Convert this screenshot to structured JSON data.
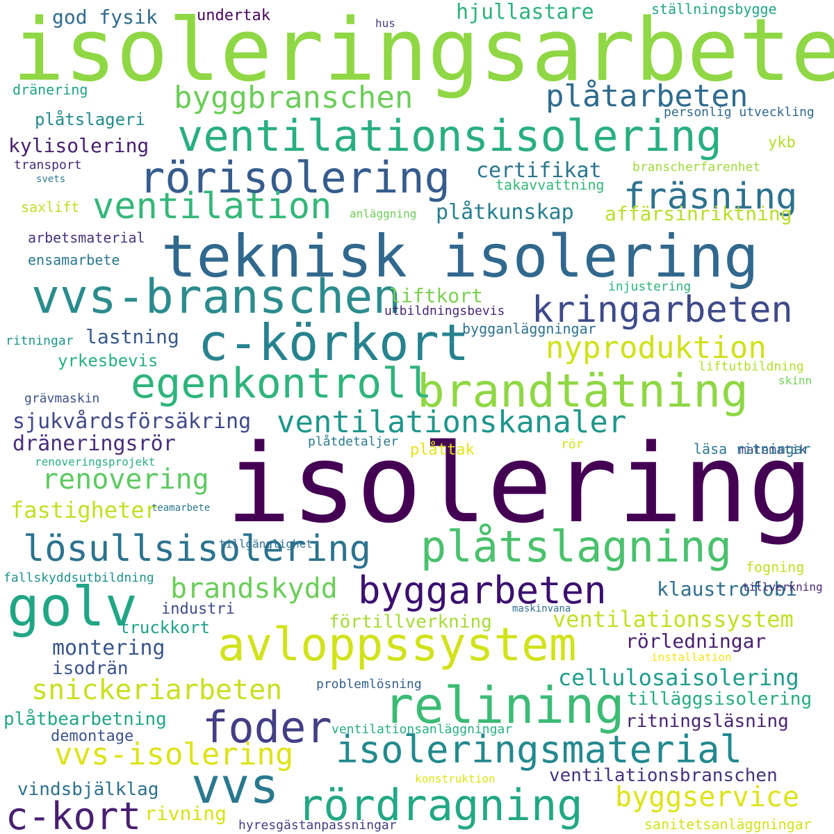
{
  "words": [
    {
      "text": "isoleringsarbete",
      "color": "#8fd744"
    },
    {
      "text": "isolering",
      "color": "#440154"
    },
    {
      "text": "teknisk isolering",
      "color": "#31688e"
    },
    {
      "text": "ventilationsisolering",
      "color": "#29af7f"
    },
    {
      "text": "vvs-branschen",
      "color": "#2c8c8d"
    },
    {
      "text": "rörisolering",
      "color": "#365c8d"
    },
    {
      "text": "c-körkort",
      "color": "#26828e"
    },
    {
      "text": "brandtätning",
      "color": "#8fd744"
    },
    {
      "text": "egenkontroll",
      "color": "#2fb47c"
    },
    {
      "text": "kringarbeten",
      "color": "#3e4a89"
    },
    {
      "text": "ventilation",
      "color": "#35b779"
    },
    {
      "text": "fräsning",
      "color": "#2c728e"
    },
    {
      "text": "byggbranschen",
      "color": "#6ccd5a"
    },
    {
      "text": "plåtarbeten",
      "color": "#2f6b8e"
    },
    {
      "text": "nyproduktion",
      "color": "#d0e11c"
    },
    {
      "text": "ventilationskanaler",
      "color": "#1f968b"
    },
    {
      "text": "avloppssystem",
      "color": "#d2e21b"
    },
    {
      "text": "golv",
      "color": "#21a685"
    },
    {
      "text": "relining",
      "color": "#3cbb75"
    },
    {
      "text": "plåtslagning",
      "color": "#4ac16d"
    },
    {
      "text": "lösullsisolering",
      "color": "#2c738e"
    },
    {
      "text": "byggarbeten",
      "color": "#3b0f70"
    },
    {
      "text": "foder",
      "color": "#433e85"
    },
    {
      "text": "vvs",
      "color": "#2a788e"
    },
    {
      "text": "rördragning",
      "color": "#22a884"
    },
    {
      "text": "isoleringsmaterial",
      "color": "#23898e"
    },
    {
      "text": "c-kort",
      "color": "#481f70"
    },
    {
      "text": "vvs-isolering",
      "color": "#dde318"
    },
    {
      "text": "snickeriarbeten",
      "color": "#c8e020"
    },
    {
      "text": "byggservice",
      "color": "#dde318"
    },
    {
      "text": "renovering",
      "color": "#5ec962"
    },
    {
      "text": "brandskydd",
      "color": "#6ccd5a"
    },
    {
      "text": "cellulosaisolering",
      "color": "#1e9c89"
    },
    {
      "text": "ventilationssystem",
      "color": "#c2df23"
    },
    {
      "text": "sjukvårdsförsäkring",
      "color": "#3f4889"
    },
    {
      "text": "dräneringsrör",
      "color": "#472d7b"
    },
    {
      "text": "fastigheter",
      "color": "#c2df23"
    },
    {
      "text": "hjullastare",
      "color": "#2db27d"
    },
    {
      "text": "certifikat",
      "color": "#2b758e"
    },
    {
      "text": "plåtkunskap",
      "color": "#277f8e"
    },
    {
      "text": "affärsinriktning",
      "color": "#b8de29"
    },
    {
      "text": "liftkort",
      "color": "#7ad151"
    },
    {
      "text": "lastning",
      "color": "#38588c"
    },
    {
      "text": "yrkesbevis",
      "color": "#29af7f"
    },
    {
      "text": "klaustrofobi",
      "color": "#2e6f8e"
    },
    {
      "text": "förtillverkning",
      "color": "#a5db36"
    },
    {
      "text": "montering",
      "color": "#39568c"
    },
    {
      "text": "isodrän",
      "color": "#3b528b"
    },
    {
      "text": "rörledningar",
      "color": "#481f70"
    },
    {
      "text": "tilläggsisolering",
      "color": "#25ac82"
    },
    {
      "text": "ritningsläsning",
      "color": "#482475"
    },
    {
      "text": "plåtbearbetning",
      "color": "#22a785"
    },
    {
      "text": "demontage",
      "color": "#3b528b"
    },
    {
      "text": "ventilationsbranschen",
      "color": "#46337e"
    },
    {
      "text": "vindsbjälklag",
      "color": "#2d708e"
    },
    {
      "text": "rivning",
      "color": "#d8e219"
    },
    {
      "text": "truckkort",
      "color": "#1fa088"
    },
    {
      "text": "industri",
      "color": "#3e4c8a"
    },
    {
      "text": "kylisolering",
      "color": "#482071"
    },
    {
      "text": "plåtslageri",
      "color": "#238a8d"
    },
    {
      "text": "god fysik",
      "color": "#306a8e"
    },
    {
      "text": "undertak",
      "color": "#46075a"
    },
    {
      "text": "hus",
      "color": "#433e85"
    },
    {
      "text": "ställningsbygge",
      "color": "#20a486"
    },
    {
      "text": "dränering",
      "color": "#1fa187"
    },
    {
      "text": "personlig utveckling",
      "color": "#31688e"
    },
    {
      "text": "ykb",
      "color": "#b5de2b"
    },
    {
      "text": "transport",
      "color": "#472c7a"
    },
    {
      "text": "svets",
      "color": "#2a788e"
    },
    {
      "text": "branscherfarenhet",
      "color": "#9fda3a"
    },
    {
      "text": "takavvattning",
      "color": "#35b779"
    },
    {
      "text": "saxlift",
      "color": "#bddf26"
    },
    {
      "text": "anläggning",
      "color": "#6ece58"
    },
    {
      "text": "arbetsmaterial",
      "color": "#46327e"
    },
    {
      "text": "ensamarbete",
      "color": "#2a768e"
    },
    {
      "text": "injustering",
      "color": "#2eb37c"
    },
    {
      "text": "utbildningsbevis",
      "color": "#482677"
    },
    {
      "text": "bygganläggningar",
      "color": "#2c718e"
    },
    {
      "text": "ritningar",
      "color": "#1f958b"
    },
    {
      "text": "liftutbildning",
      "color": "#b2dd2d"
    },
    {
      "text": "skinn",
      "color": "#73d056"
    },
    {
      "text": "grävmaskin",
      "color": "#3b528b"
    },
    {
      "text": "matematik",
      "color": "#3e4a89"
    },
    {
      "text": "plåtdetaljer",
      "color": "#2a778e"
    },
    {
      "text": "plåttak",
      "color": "#e5e419"
    },
    {
      "text": "rör",
      "color": "#d5e21a"
    },
    {
      "text": "läsa ritningar",
      "color": "#2a788e"
    },
    {
      "text": "renoveringsprojekt",
      "color": "#29af7f"
    },
    {
      "text": "teamarbete",
      "color": "#2a7b8e"
    },
    {
      "text": "tillgänglighet",
      "color": "#2e6e8e"
    },
    {
      "text": "fogning",
      "color": "#c0df25"
    },
    {
      "text": "fallskyddsutbildning",
      "color": "#20928c"
    },
    {
      "text": "tillverkning",
      "color": "#482878"
    },
    {
      "text": "maskinvana",
      "color": "#2e6f8e"
    },
    {
      "text": "installation",
      "color": "#f1e51d"
    },
    {
      "text": "problemlösning",
      "color": "#355f8d"
    },
    {
      "text": "ventilationsanläggningar",
      "color": "#26ad81"
    },
    {
      "text": "konstruktion",
      "color": "#dde318"
    },
    {
      "text": "hyresgästanpassningar",
      "color": "#433d84"
    },
    {
      "text": "sanitetsanläggningar",
      "color": "#d0e11c"
    }
  ]
}
